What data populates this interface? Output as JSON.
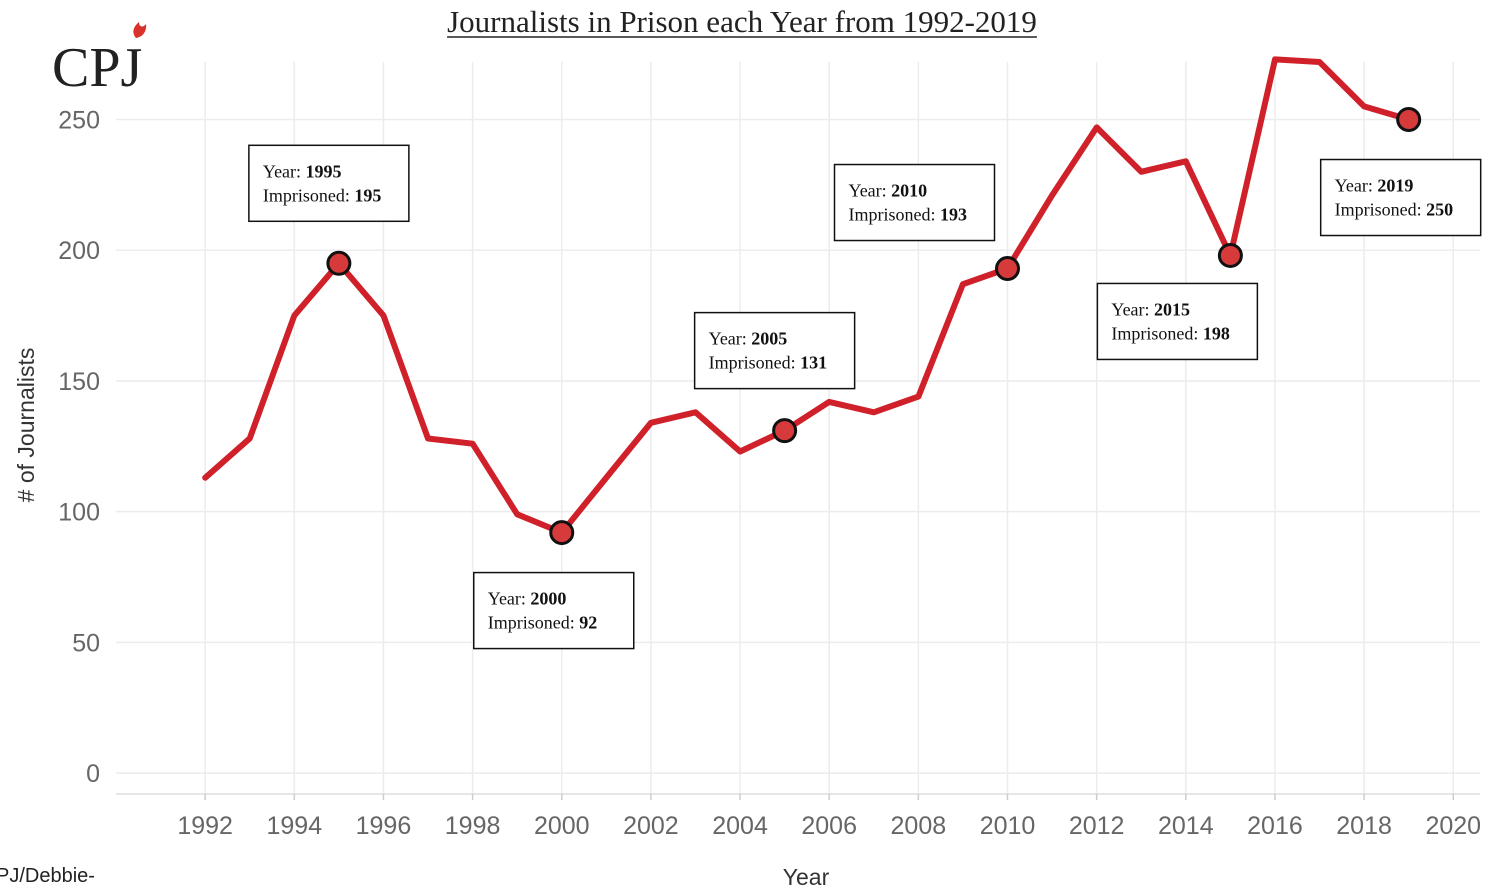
{
  "logo": {
    "text": "CPJ",
    "flame_color": "#d9312b"
  },
  "credit": "PJ/Debbie-",
  "colors": {
    "line": "#d0202a",
    "marker_fill": "#d73a3a",
    "marker_stroke": "#111111",
    "grid": "#ececec"
  },
  "chart_data": {
    "type": "line",
    "title": "Journalists in Prison each Year from 1992-2019",
    "xlabel": "Year",
    "ylabel": "# of Journalists",
    "xlim": [
      1990,
      2020.6
    ],
    "ylim": [
      -8,
      272
    ],
    "xticks": [
      1992,
      1994,
      1996,
      1998,
      2000,
      2002,
      2004,
      2006,
      2008,
      2010,
      2012,
      2014,
      2016,
      2018,
      2020
    ],
    "yticks": [
      0,
      50,
      100,
      150,
      200,
      250
    ],
    "grid": true,
    "series": [
      {
        "x": [
          1992,
          1993,
          1994,
          1995,
          1996,
          1997,
          1998,
          1999,
          2000,
          2001,
          2002,
          2003,
          2004,
          2005,
          2006,
          2007,
          2008,
          2009,
          2010,
          2011,
          2012,
          2013,
          2014,
          2015,
          2016,
          2017,
          2018,
          2019
        ],
        "values": [
          113,
          128,
          175,
          195,
          175,
          128,
          126,
          99,
          92,
          113,
          134,
          138,
          123,
          131,
          142,
          138,
          144,
          187,
          193,
          221,
          247,
          230,
          234,
          198,
          273,
          272,
          255,
          250
        ]
      }
    ],
    "annotations": [
      {
        "x": 1995,
        "y": 195,
        "year_label": "Year: ",
        "year": "1995",
        "count_label": "Imprisoned: ",
        "count": "195",
        "position": "above"
      },
      {
        "x": 2000,
        "y": 92,
        "year_label": "Year: ",
        "year": "2000",
        "count_label": "Imprisoned: ",
        "count": "92",
        "position": "below"
      },
      {
        "x": 2005,
        "y": 131,
        "year_label": "Year: ",
        "year": "2005",
        "count_label": "Imprisoned: ",
        "count": "131",
        "position": "above"
      },
      {
        "x": 2010,
        "y": 193,
        "year_label": "Year: ",
        "year": "2010",
        "count_label": "Imprisoned: ",
        "count": "193",
        "position": "above-left"
      },
      {
        "x": 2015,
        "y": 198,
        "year_label": "Year: ",
        "year": "2015",
        "count_label": "Imprisoned: ",
        "count": "198",
        "position": "below-left"
      },
      {
        "x": 2019,
        "y": 250,
        "year_label": "Year: ",
        "year": "2019",
        "count_label": "Imprisoned: ",
        "count": "250",
        "position": "below"
      }
    ]
  }
}
